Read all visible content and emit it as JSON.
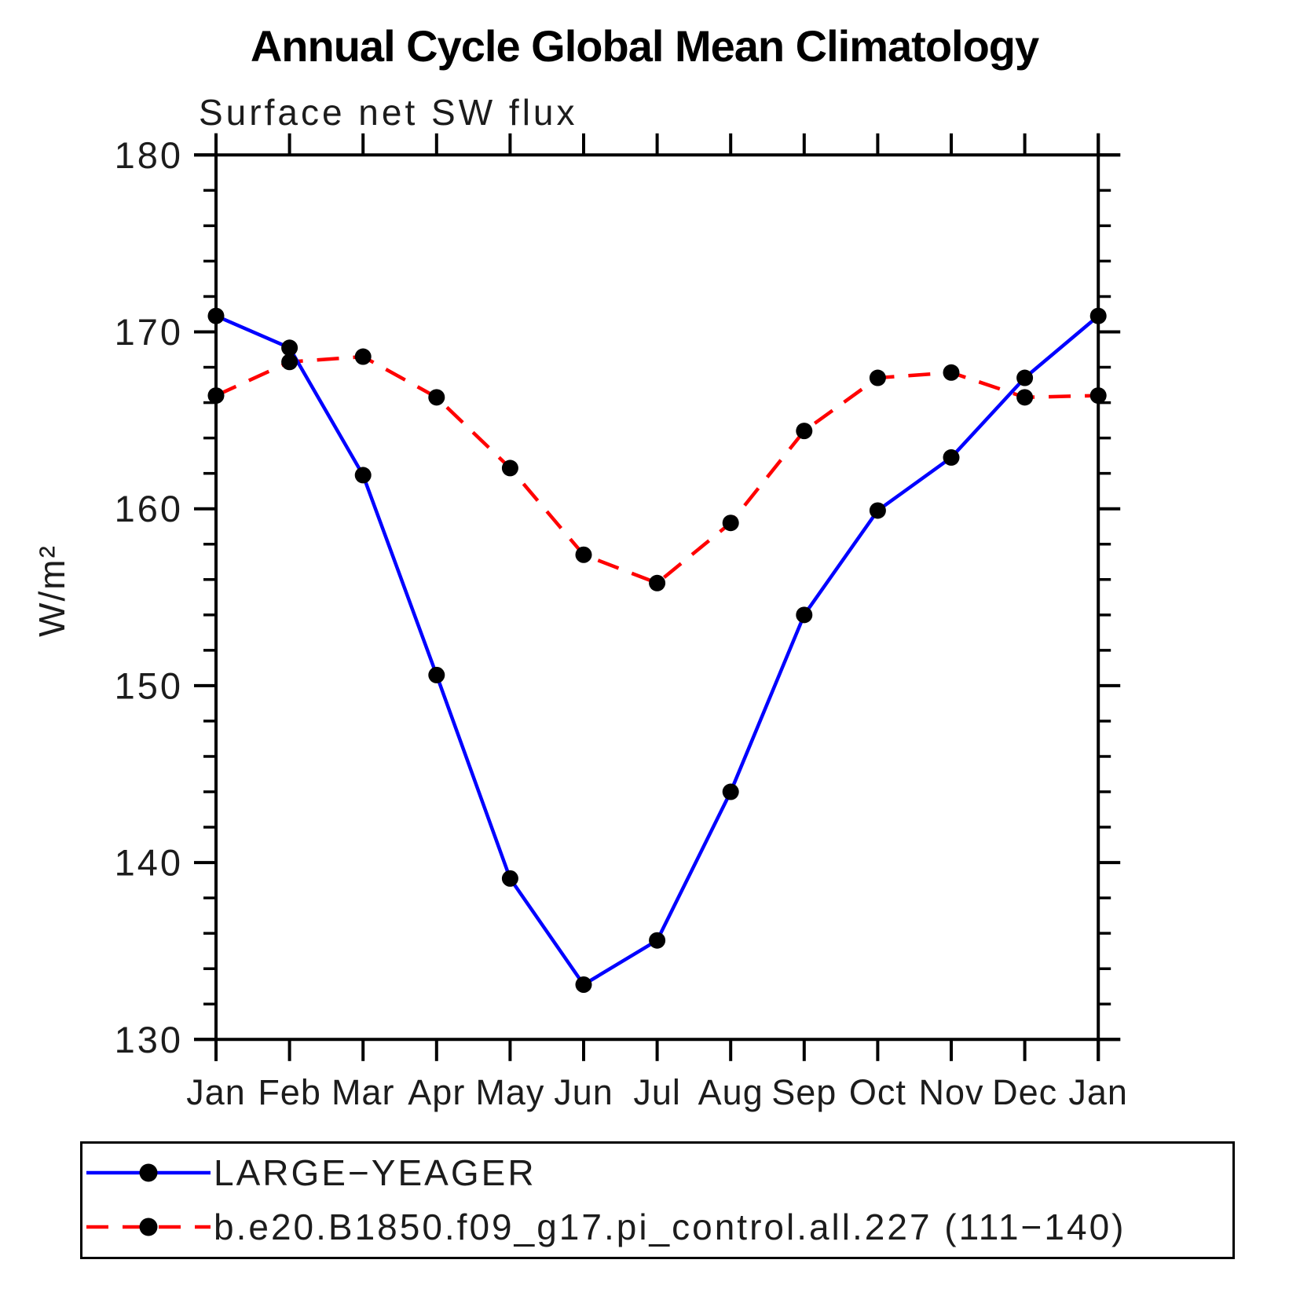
{
  "chart_data": {
    "type": "line",
    "title": "Annual Cycle Global Mean Climatology",
    "subtitle": "Surface net SW flux",
    "ylabel": "W/m²",
    "xlabel": "",
    "categories": [
      "Jan",
      "Feb",
      "Mar",
      "Apr",
      "May",
      "Jun",
      "Jul",
      "Aug",
      "Sep",
      "Oct",
      "Nov",
      "Dec",
      "Jan"
    ],
    "ylim": [
      130,
      180
    ],
    "ytick_major": [
      130,
      140,
      150,
      160,
      170,
      180
    ],
    "ytick_minor_step": 2,
    "grid": false,
    "legend_position": "bottom-left-box",
    "marker": {
      "shape": "circle",
      "color": "#000000"
    },
    "axis_color": "#000000",
    "series": [
      {
        "name": "LARGE−YEAGER",
        "color": "#0000ff",
        "line_style": "solid",
        "values": [
          170.9,
          169.1,
          161.9,
          150.6,
          139.1,
          133.1,
          135.6,
          144.0,
          154.0,
          159.9,
          162.9,
          167.4,
          170.9
        ]
      },
      {
        "name": "b.e20.B1850.f09_g17.pi_control.all.227 (111−140)",
        "color": "#ff0000",
        "line_style": "dashed",
        "values": [
          166.4,
          168.3,
          168.6,
          166.3,
          162.3,
          157.4,
          155.8,
          159.2,
          164.4,
          167.4,
          167.7,
          166.3,
          166.4
        ]
      }
    ]
  }
}
